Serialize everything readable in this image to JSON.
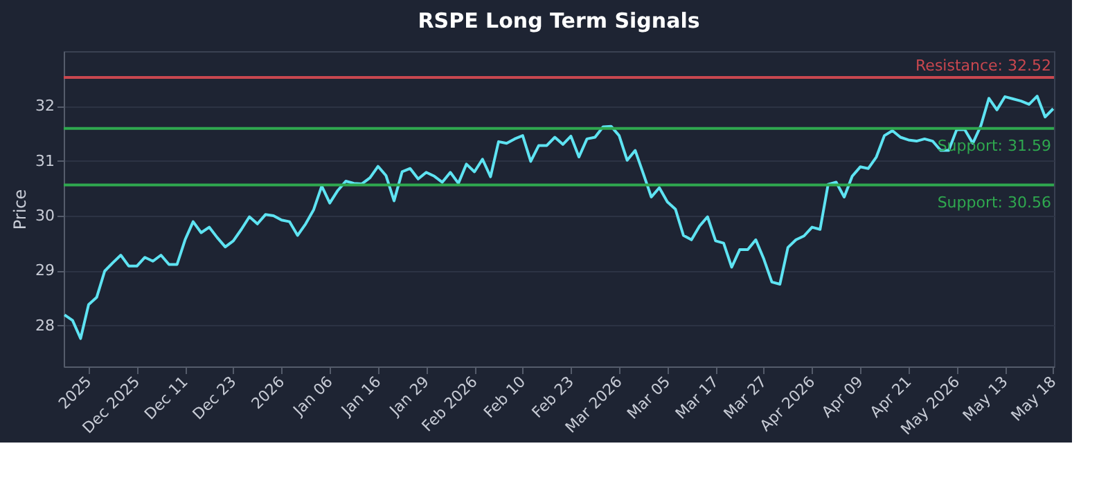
{
  "chart_data": {
    "type": "line",
    "title": "RSPE Long Term Signals",
    "ylabel": "Price",
    "categories": [
      null,
      null,
      null,
      "2025",
      null,
      null,
      null,
      null,
      null,
      "Dec 2025",
      null,
      null,
      null,
      null,
      null,
      "Dec 11",
      null,
      null,
      null,
      null,
      null,
      "Dec 23",
      null,
      null,
      null,
      null,
      null,
      "2026",
      null,
      null,
      null,
      null,
      null,
      "Jan 06",
      null,
      null,
      null,
      null,
      null,
      "Jan 16",
      null,
      null,
      null,
      null,
      null,
      "Jan 29",
      null,
      null,
      null,
      null,
      null,
      "Feb 2026",
      null,
      null,
      null,
      null,
      null,
      "Feb 10",
      null,
      null,
      null,
      null,
      null,
      "Feb 23",
      null,
      null,
      null,
      null,
      null,
      "Mar 2026",
      null,
      null,
      null,
      null,
      null,
      "Mar 05",
      null,
      null,
      null,
      null,
      null,
      "Mar 17",
      null,
      null,
      null,
      null,
      null,
      "Mar 27",
      null,
      null,
      null,
      null,
      null,
      "Apr 2026",
      null,
      null,
      null,
      null,
      null,
      "Apr 09",
      null,
      null,
      null,
      null,
      null,
      "Apr 21",
      null,
      null,
      null,
      null,
      null,
      "May 2026",
      null,
      null,
      null,
      null,
      null,
      "May 13",
      null,
      null,
      null,
      null,
      null,
      "May 18"
    ],
    "series": [
      {
        "color": "#5ee3f2",
        "values": [
          28.19,
          28.09,
          27.76,
          28.38,
          28.51,
          28.99,
          29.14,
          29.28,
          29.08,
          29.08,
          29.24,
          29.17,
          29.28,
          29.11,
          29.11,
          29.56,
          29.89,
          29.69,
          29.79,
          29.6,
          29.43,
          29.54,
          29.75,
          29.98,
          29.85,
          30.02,
          30.0,
          29.92,
          29.89,
          29.64,
          29.85,
          30.11,
          30.54,
          30.23,
          30.46,
          30.63,
          30.59,
          30.58,
          30.69,
          30.9,
          30.73,
          30.27,
          30.8,
          30.86,
          30.67,
          30.79,
          30.72,
          30.61,
          30.79,
          30.59,
          30.94,
          30.8,
          31.03,
          30.71,
          31.35,
          31.32,
          31.4,
          31.46,
          30.99,
          31.28,
          31.28,
          31.43,
          31.3,
          31.45,
          31.07,
          31.4,
          31.43,
          31.62,
          31.63,
          31.46,
          31.01,
          31.19,
          30.77,
          30.34,
          30.51,
          30.25,
          30.12,
          29.64,
          29.56,
          29.81,
          29.98,
          29.54,
          29.5,
          29.06,
          29.38,
          29.38,
          29.56,
          29.21,
          28.79,
          28.75,
          29.42,
          29.56,
          29.63,
          29.79,
          29.75,
          30.57,
          30.61,
          30.34,
          30.72,
          30.89,
          30.86,
          31.07,
          31.46,
          31.55,
          31.43,
          31.38,
          31.36,
          31.4,
          31.36,
          31.19,
          31.19,
          31.57,
          31.57,
          31.32,
          31.64,
          32.14,
          31.93,
          32.17,
          32.13,
          32.09,
          32.03,
          32.18,
          31.8,
          31.95
        ]
      }
    ],
    "ylim": [
      27.25,
      33.0
    ],
    "yticks": [
      28,
      29,
      30,
      31,
      32
    ],
    "grid": "y",
    "marker": "none",
    "line_style": "solid",
    "legend": false,
    "ref_lines": [
      {
        "axis": "y",
        "value": 32.52,
        "label": "Resistance: 32.52",
        "color": "#c9474f"
      },
      {
        "axis": "y",
        "value": 31.59,
        "label": "Support: 31.59",
        "color": "#2fa84f"
      },
      {
        "axis": "y",
        "value": 30.56,
        "label": "Support: 30.56",
        "color": "#2fa84f"
      }
    ]
  }
}
